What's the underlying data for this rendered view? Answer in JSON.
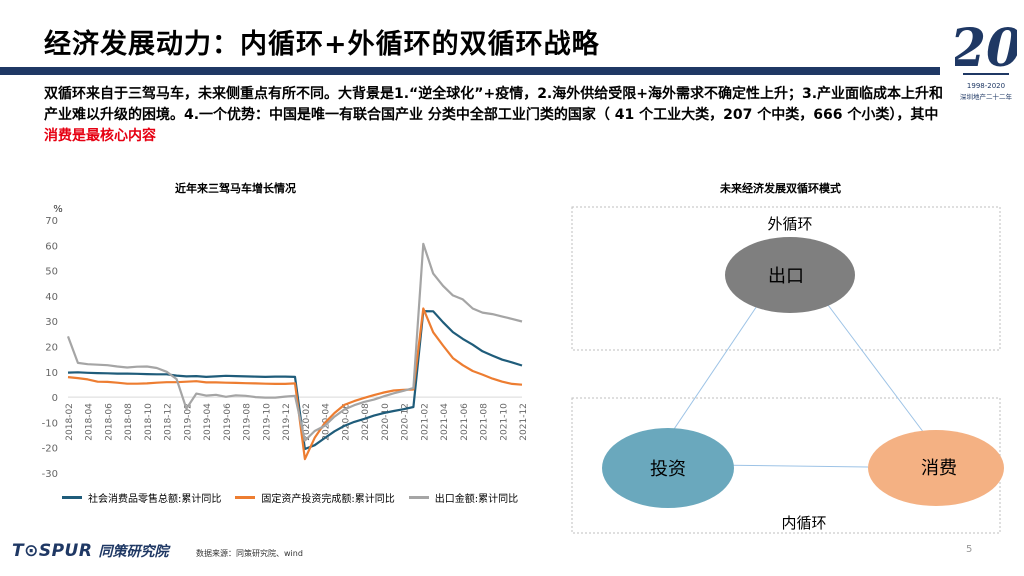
{
  "header": {
    "title": "经济发展动力：内循环+外循环的双循环战略"
  },
  "corner_logo": {
    "line1": "1998-2020",
    "line2": "深圳地产二十二年"
  },
  "intro": {
    "text": "双循环来自于三驾马车，未来侧重点有所不同。大背景是1.“逆全球化”+疫情，2.海外供给受限+海外需求不确定性上升；3.产业面临成本上升和产业难以升级的困境。4.一个优势：中国是唯一有联合国产业 分类中全部工业门类的国家（  41 个工业大类，207 个中类，666 个小类），其中",
    "highlight": "消费是最核心内容"
  },
  "chart_data": {
    "type": "line",
    "title": "近年来三驾马车增长情况",
    "ylabel": "%",
    "ylim": [
      -30,
      70
    ],
    "yticks": [
      -30,
      -20,
      -10,
      0,
      10,
      20,
      30,
      40,
      50,
      60,
      70
    ],
    "tick_labels": [
      "2018-02",
      "2018-04",
      "2018-06",
      "2018-08",
      "2018-10",
      "2018-12",
      "2019-02",
      "2019-04",
      "2019-06",
      "2019-08",
      "2019-10",
      "2019-12",
      "2020-02",
      "2020-04",
      "2020-06",
      "2020-08",
      "2020-10",
      "2020-12",
      "2021-02",
      "2021-04",
      "2021-06",
      "2021-08",
      "2021-10",
      "2021-12"
    ],
    "legend_position": "bottom",
    "series": [
      {
        "name": "社会消费品零售总额:累计同比",
        "color": "#1f5c7a",
        "values": [
          9.7,
          9.8,
          9.6,
          9.5,
          9.4,
          9.3,
          9.3,
          9.2,
          9.1,
          9.0,
          9.0,
          8.5,
          8.2,
          8.3,
          8.0,
          8.2,
          8.4,
          8.3,
          8.2,
          8.1,
          8.0,
          8.1,
          8.1,
          8.0,
          -20.5,
          -19.0,
          -16.2,
          -13.5,
          -11.4,
          -9.8,
          -8.6,
          -7.3,
          -6.3,
          -5.5,
          -4.8,
          -3.9,
          34.0,
          33.9,
          29.6,
          25.7,
          23.0,
          20.7,
          18.1,
          16.4,
          14.8,
          13.7,
          12.5
        ]
      },
      {
        "name": "固定资产投资完成额:累计同比",
        "color": "#ed7d31",
        "values": [
          7.9,
          7.5,
          7.0,
          6.1,
          6.0,
          5.7,
          5.3,
          5.3,
          5.4,
          5.7,
          5.9,
          5.9,
          6.1,
          6.3,
          5.8,
          5.8,
          5.7,
          5.6,
          5.5,
          5.4,
          5.3,
          5.2,
          5.2,
          5.4,
          -24.5,
          -16.1,
          -10.3,
          -6.3,
          -3.1,
          -1.6,
          -0.3,
          0.8,
          1.8,
          2.6,
          2.9,
          3.0,
          35.0,
          25.6,
          20.4,
          15.4,
          12.6,
          10.3,
          8.9,
          7.3,
          6.1,
          5.2,
          4.9
        ]
      },
      {
        "name": "出口金额:累计同比",
        "color": "#a5a5a5",
        "values": [
          24.0,
          13.5,
          13.0,
          12.8,
          12.6,
          12.1,
          11.7,
          12.0,
          12.1,
          11.5,
          10.0,
          7.1,
          -4.6,
          1.4,
          0.6,
          0.9,
          0.1,
          0.7,
          0.5,
          0.0,
          -0.2,
          -0.2,
          0.2,
          0.5,
          -17.2,
          -13.4,
          -11.4,
          -7.7,
          -4.9,
          -3.2,
          -1.9,
          -1.0,
          0.3,
          1.5,
          2.5,
          3.6,
          60.6,
          48.8,
          44.0,
          40.2,
          38.6,
          35.0,
          33.4,
          32.8,
          31.8,
          30.9,
          29.9
        ]
      }
    ]
  },
  "diagram": {
    "title": "未来经济发展双循环模式",
    "outer_label": "外循环",
    "inner_label": "内循环",
    "nodes": {
      "export": "出口",
      "investment": "投资",
      "consumption": "消费"
    },
    "colors": {
      "export": "#7f7f7f",
      "investment": "#6aa8bd",
      "consumption": "#f4b183"
    }
  },
  "footer": {
    "brand": "T⊙SPUR",
    "brand_cn": "同策研究院",
    "source": "数据来源：同策研究院、wind",
    "page": "5"
  }
}
